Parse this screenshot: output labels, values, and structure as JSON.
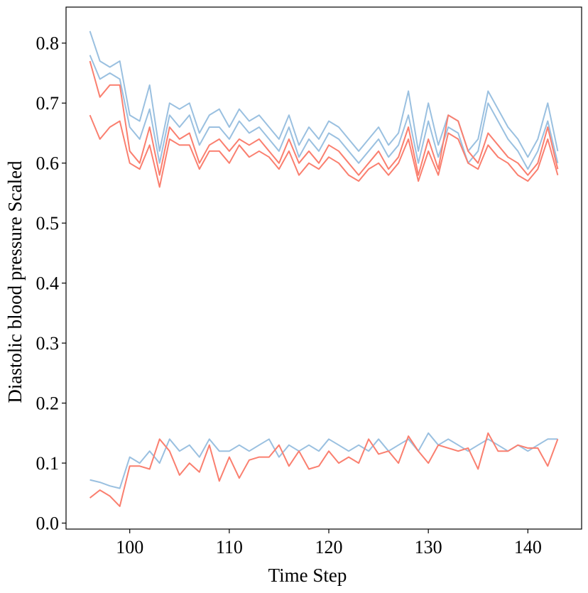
{
  "chart_data": {
    "type": "line",
    "title": "",
    "xlabel": "Time Step",
    "ylabel": "Diastolic blood pressure Scaled",
    "xlim": [
      93.6,
      145.4
    ],
    "ylim": [
      -0.01,
      0.86
    ],
    "x_ticks": [
      100,
      110,
      120,
      130,
      140
    ],
    "y_ticks": [
      0.0,
      0.1,
      0.2,
      0.3,
      0.4,
      0.5,
      0.6,
      0.7,
      0.8
    ],
    "x_range": [
      96,
      143
    ],
    "grid": false,
    "legend": "none",
    "colors": {
      "group_a": "#fa7f6f",
      "group_b": "#9ac0e0",
      "axes": "#000000"
    },
    "series": [
      {
        "group": "group_b",
        "values": [
          0.82,
          0.77,
          0.76,
          0.77,
          0.68,
          0.67,
          0.73,
          0.62,
          0.7,
          0.69,
          0.7,
          0.65,
          0.68,
          0.69,
          0.66,
          0.69,
          0.67,
          0.68,
          0.66,
          0.64,
          0.68,
          0.63,
          0.66,
          0.64,
          0.67,
          0.66,
          0.64,
          0.62,
          0.64,
          0.66,
          0.63,
          0.65,
          0.72,
          0.62,
          0.7,
          0.63,
          0.68,
          0.67,
          0.62,
          0.64,
          0.72,
          0.69,
          0.66,
          0.64,
          0.61,
          0.64,
          0.7,
          0.62
        ]
      },
      {
        "group": "group_b",
        "values": [
          0.78,
          0.74,
          0.75,
          0.74,
          0.66,
          0.64,
          0.69,
          0.6,
          0.68,
          0.66,
          0.68,
          0.63,
          0.66,
          0.66,
          0.64,
          0.67,
          0.65,
          0.66,
          0.64,
          0.62,
          0.66,
          0.61,
          0.64,
          0.62,
          0.65,
          0.64,
          0.62,
          0.6,
          0.62,
          0.64,
          0.61,
          0.63,
          0.68,
          0.6,
          0.67,
          0.61,
          0.66,
          0.65,
          0.6,
          0.62,
          0.7,
          0.67,
          0.64,
          0.62,
          0.59,
          0.62,
          0.67,
          0.6
        ]
      },
      {
        "group": "group_a",
        "values": [
          0.77,
          0.71,
          0.73,
          0.73,
          0.62,
          0.6,
          0.66,
          0.58,
          0.66,
          0.64,
          0.65,
          0.6,
          0.63,
          0.64,
          0.62,
          0.64,
          0.63,
          0.64,
          0.62,
          0.6,
          0.64,
          0.6,
          0.62,
          0.6,
          0.63,
          0.62,
          0.6,
          0.58,
          0.6,
          0.62,
          0.59,
          0.61,
          0.66,
          0.58,
          0.64,
          0.59,
          0.68,
          0.67,
          0.62,
          0.6,
          0.65,
          0.63,
          0.61,
          0.6,
          0.58,
          0.6,
          0.66,
          0.59
        ]
      },
      {
        "group": "group_a",
        "values": [
          0.68,
          0.64,
          0.66,
          0.67,
          0.6,
          0.59,
          0.63,
          0.56,
          0.64,
          0.63,
          0.63,
          0.59,
          0.62,
          0.62,
          0.6,
          0.63,
          0.61,
          0.62,
          0.61,
          0.59,
          0.62,
          0.58,
          0.6,
          0.59,
          0.61,
          0.6,
          0.58,
          0.57,
          0.59,
          0.6,
          0.58,
          0.6,
          0.64,
          0.57,
          0.62,
          0.58,
          0.65,
          0.64,
          0.6,
          0.59,
          0.63,
          0.61,
          0.6,
          0.58,
          0.57,
          0.59,
          0.64,
          0.58
        ]
      },
      {
        "group": "group_b",
        "values": [
          0.072,
          0.068,
          0.062,
          0.058,
          0.11,
          0.1,
          0.12,
          0.1,
          0.14,
          0.12,
          0.13,
          0.11,
          0.14,
          0.12,
          0.12,
          0.13,
          0.12,
          0.13,
          0.14,
          0.11,
          0.13,
          0.12,
          0.13,
          0.12,
          0.14,
          0.13,
          0.12,
          0.13,
          0.12,
          0.14,
          0.12,
          0.13,
          0.14,
          0.12,
          0.15,
          0.13,
          0.14,
          0.13,
          0.12,
          0.13,
          0.14,
          0.13,
          0.12,
          0.13,
          0.12,
          0.13,
          0.14,
          0.14
        ]
      },
      {
        "group": "group_a",
        "values": [
          0.042,
          0.055,
          0.045,
          0.028,
          0.095,
          0.095,
          0.09,
          0.14,
          0.12,
          0.08,
          0.1,
          0.085,
          0.13,
          0.07,
          0.11,
          0.075,
          0.105,
          0.11,
          0.11,
          0.13,
          0.095,
          0.12,
          0.09,
          0.095,
          0.12,
          0.1,
          0.11,
          0.1,
          0.14,
          0.115,
          0.12,
          0.1,
          0.145,
          0.12,
          0.1,
          0.13,
          0.125,
          0.12,
          0.125,
          0.09,
          0.15,
          0.12,
          0.12,
          0.13,
          0.125,
          0.125,
          0.095,
          0.14
        ]
      }
    ]
  }
}
